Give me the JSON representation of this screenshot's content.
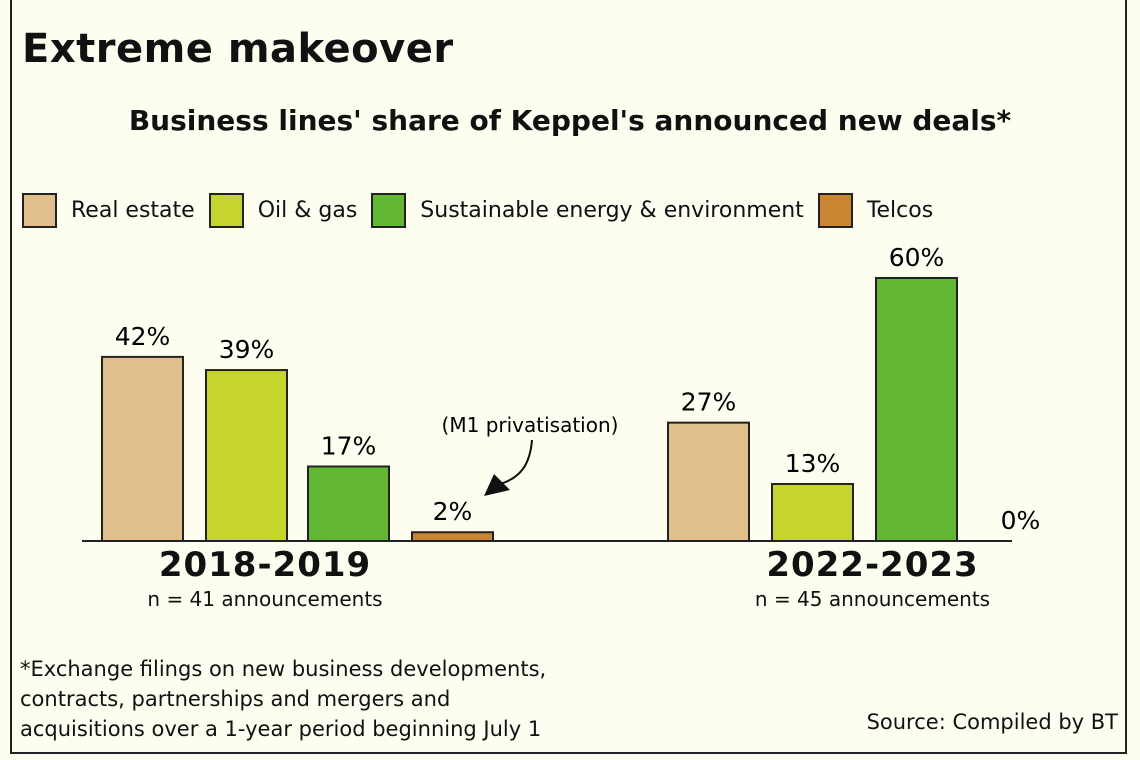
{
  "chart_data": {
    "type": "bar",
    "title": "Extreme makeover",
    "subtitle": "Business lines' share of Keppel's announced new deals*",
    "legend_position": "top",
    "grid": false,
    "ylim": [
      0,
      60
    ],
    "series_names": [
      "Real estate",
      "Oil & gas",
      "Sustainable energy & environment",
      "Telcos"
    ],
    "colors": [
      "#e0bf8c",
      "#c5d52d",
      "#63b833",
      "#c98530"
    ],
    "groups": [
      {
        "period": "2018-2019",
        "n_label": "n = 41 announcements",
        "values": [
          42,
          39,
          17,
          2
        ],
        "labels": [
          "42%",
          "39%",
          "17%",
          "2%"
        ]
      },
      {
        "period": "2022-2023",
        "n_label": "n = 45 announcements",
        "values": [
          27,
          13,
          60,
          0
        ],
        "labels": [
          "27%",
          "13%",
          "60%",
          "0%"
        ]
      }
    ],
    "annotation": "(M1 privatisation)",
    "footnote": [
      "*Exchange filings on new business developments,",
      "contracts, partnerships and mergers and",
      "acquisitions over a 1-year period beginning July 1"
    ],
    "source": "Source: Compiled by BT"
  }
}
